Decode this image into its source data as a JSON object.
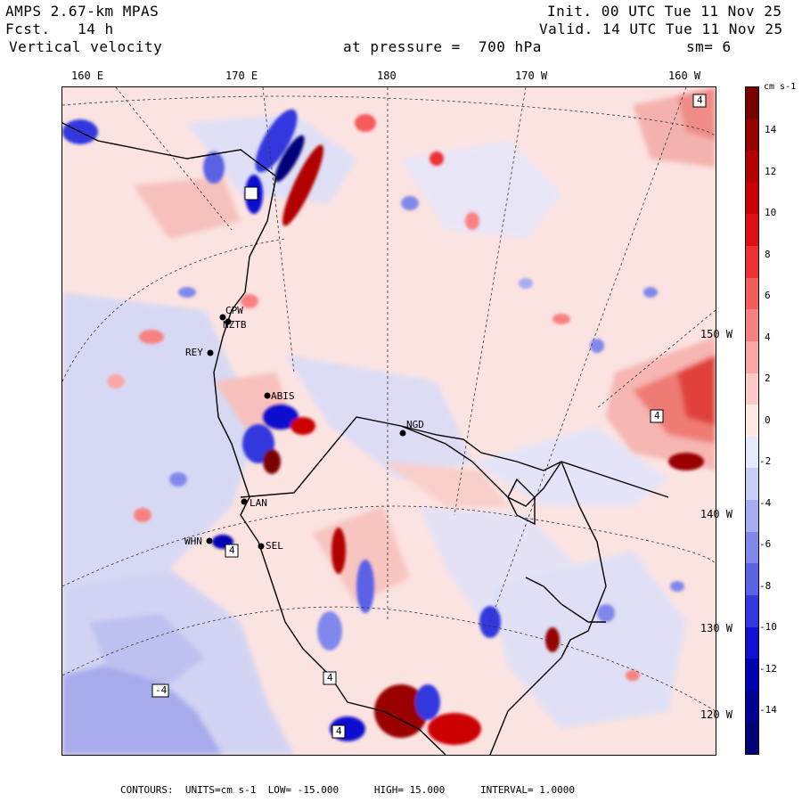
{
  "header": {
    "model": "AMPS 2.67-km MPAS",
    "forecast_label": "Fcst.",
    "forecast_hours": "14 h",
    "field": "Vertical velocity",
    "pressure_label": "at pressure =",
    "pressure_value": "700 hPa",
    "init": "Init. 00 UTC Tue 11 Nov 25",
    "valid": "Valid. 14 UTC Tue 11 Nov 25",
    "smoothing": "sm= 6"
  },
  "longitude_labels": [
    "160 E",
    "170 E",
    "180",
    "170 W",
    "160 W"
  ],
  "latitude_labels": [
    "150 W",
    "140 W",
    "130 W",
    "120 W"
  ],
  "stations": [
    "CPW",
    "NZTB",
    "REY",
    "ABIS",
    "NGD",
    "LAN",
    "WHN",
    "SEL"
  ],
  "contour_markers": [
    "4",
    "4",
    "4",
    "4",
    "4",
    "-4"
  ],
  "colorbar": {
    "units_label": "cm s-1",
    "ticks": [
      "14",
      "12",
      "10",
      "8",
      "6",
      "4",
      "2",
      "0",
      "-2",
      "-4",
      "-6",
      "-8",
      "-10",
      "-12",
      "-14"
    ],
    "colors": [
      "#7a0000",
      "#990000",
      "#b30000",
      "#cc0000",
      "#e01010",
      "#ee3030",
      "#f55c5c",
      "#f98080",
      "#fba6a6",
      "#fdc8c8",
      "#fde8e6",
      "#e6e8fb",
      "#c8ccf7",
      "#a6acf2",
      "#8088ec",
      "#5c62e6",
      "#3038de",
      "#1010d0",
      "#0000b3",
      "#000099",
      "#00007a"
    ]
  },
  "footer": {
    "contours": "CONTOURS:",
    "units": "UNITS=cm s-1",
    "low": "LOW= -15.000",
    "high": "HIGH= 15.000",
    "interval": "INTERVAL= 1.0000"
  }
}
